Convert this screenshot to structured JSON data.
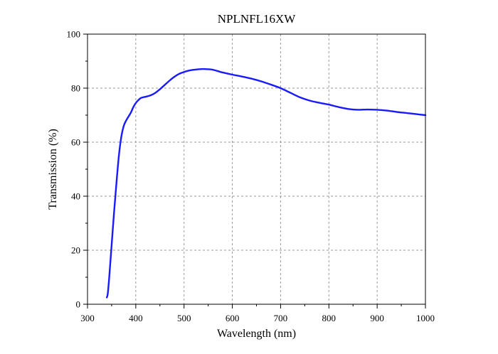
{
  "chart_data": {
    "type": "line",
    "title": "NPLNFL16XW",
    "xlabel": "Wavelength (nm)",
    "ylabel": "Transmission (%)",
    "xlim": [
      300,
      1000
    ],
    "ylim": [
      0,
      100
    ],
    "xticks": [
      300,
      400,
      500,
      600,
      700,
      800,
      900,
      1000
    ],
    "yticks": [
      0,
      20,
      40,
      60,
      80,
      100
    ],
    "grid": true,
    "series": [
      {
        "color": "#1a1aff",
        "x": [
          340,
          342,
          345,
          350,
          355,
          360,
          365,
          370,
          375,
          380,
          385,
          390,
          395,
          400,
          405,
          410,
          415,
          420,
          430,
          440,
          450,
          460,
          470,
          480,
          490,
          500,
          510,
          520,
          530,
          540,
          550,
          560,
          570,
          580,
          600,
          620,
          640,
          660,
          680,
          700,
          720,
          740,
          760,
          780,
          800,
          820,
          840,
          860,
          880,
          900,
          920,
          940,
          960,
          980,
          1000
        ],
        "values": [
          2.5,
          4,
          10,
          22,
          34,
          45,
          55,
          62,
          66,
          68,
          69.5,
          71,
          73,
          74.5,
          75.5,
          76.3,
          76.6,
          76.8,
          77.3,
          78.2,
          79.6,
          81.2,
          82.8,
          84.2,
          85.3,
          86.0,
          86.5,
          86.8,
          87.0,
          87.1,
          87.0,
          86.8,
          86.3,
          85.8,
          85.0,
          84.3,
          83.5,
          82.5,
          81.3,
          80.0,
          78.3,
          76.6,
          75.4,
          74.6,
          73.9,
          73.0,
          72.3,
          72.0,
          72.1,
          72.0,
          71.7,
          71.2,
          70.8,
          70.4,
          70.0
        ]
      }
    ]
  }
}
